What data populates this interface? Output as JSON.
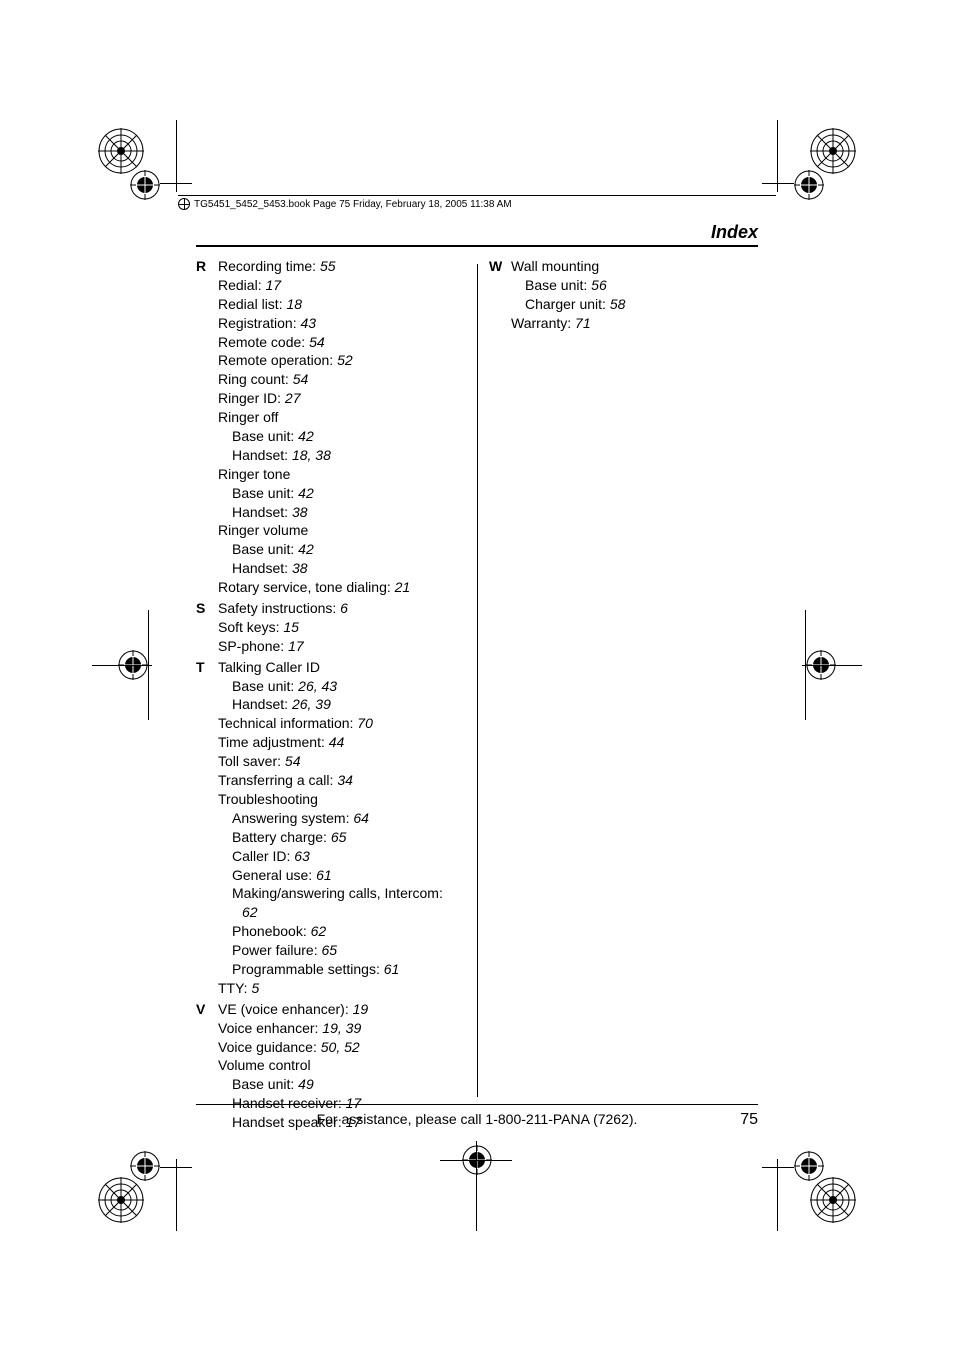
{
  "header_text": "TG5451_5452_5453.book  Page 75  Friday, February 18, 2005  11:38 AM",
  "title": "Index",
  "footer_text": "For assistance, please call 1-800-211-PANA (7262).",
  "page_number": "75",
  "left": {
    "R": {
      "letter": "R",
      "items": [
        {
          "t": "Recording time: ",
          "p": "55"
        },
        {
          "t": "Redial: ",
          "p": "17"
        },
        {
          "t": "Redial list: ",
          "p": "18"
        },
        {
          "t": "Registration: ",
          "p": "43"
        },
        {
          "t": "Remote code: ",
          "p": "54"
        },
        {
          "t": "Remote operation: ",
          "p": "52"
        },
        {
          "t": "Ring count: ",
          "p": "54"
        },
        {
          "t": "Ringer ID: ",
          "p": "27"
        },
        {
          "t": "Ringer off",
          "p": ""
        },
        {
          "t": "Base unit: ",
          "p": "42",
          "sub": true
        },
        {
          "t": "Handset: ",
          "p": "18, 38",
          "sub": true
        },
        {
          "t": "Ringer tone",
          "p": ""
        },
        {
          "t": "Base unit: ",
          "p": "42",
          "sub": true
        },
        {
          "t": "Handset: ",
          "p": "38",
          "sub": true
        },
        {
          "t": "Ringer volume",
          "p": ""
        },
        {
          "t": "Base unit: ",
          "p": "42",
          "sub": true
        },
        {
          "t": "Handset: ",
          "p": "38",
          "sub": true
        },
        {
          "t": "Rotary service, tone dialing: ",
          "p": "21"
        }
      ]
    },
    "S": {
      "letter": "S",
      "items": [
        {
          "t": "Safety instructions: ",
          "p": "6"
        },
        {
          "t": "Soft keys: ",
          "p": "15"
        },
        {
          "t": "SP-phone: ",
          "p": "17"
        }
      ]
    },
    "T": {
      "letter": "T",
      "items": [
        {
          "t": "Talking Caller ID",
          "p": ""
        },
        {
          "t": "Base unit: ",
          "p": "26, 43",
          "sub": true
        },
        {
          "t": "Handset: ",
          "p": "26, 39",
          "sub": true
        },
        {
          "t": "Technical information: ",
          "p": "70"
        },
        {
          "t": "Time adjustment: ",
          "p": "44"
        },
        {
          "t": "Toll saver: ",
          "p": "54"
        },
        {
          "t": "Transferring a call: ",
          "p": "34"
        },
        {
          "t": "Troubleshooting",
          "p": ""
        },
        {
          "t": "Answering system: ",
          "p": "64",
          "sub": true
        },
        {
          "t": "Battery charge: ",
          "p": "65",
          "sub": true
        },
        {
          "t": "Caller ID: ",
          "p": "63",
          "sub": true
        },
        {
          "t": "General use: ",
          "p": "61",
          "sub": true
        },
        {
          "t": "Making/answering calls, Intercom: ",
          "p": "",
          "sub": true
        },
        {
          "t": "62",
          "p": "",
          "sub2": true,
          "pgonly": true
        },
        {
          "t": "Phonebook: ",
          "p": "62",
          "sub": true
        },
        {
          "t": "Power failure: ",
          "p": "65",
          "sub": true
        },
        {
          "t": "Programmable settings: ",
          "p": "61",
          "sub": true
        },
        {
          "t": "TTY: ",
          "p": "5"
        }
      ]
    },
    "V": {
      "letter": "V",
      "items": [
        {
          "t": "VE (voice enhancer): ",
          "p": "19"
        },
        {
          "t": "Voice enhancer: ",
          "p": "19, 39"
        },
        {
          "t": "Voice guidance: ",
          "p": "50, 52"
        },
        {
          "t": "Volume control",
          "p": ""
        },
        {
          "t": "Base unit: ",
          "p": "49",
          "sub": true
        },
        {
          "t": "Handset receiver: ",
          "p": "17",
          "sub": true
        },
        {
          "t": "Handset speaker: ",
          "p": "17",
          "sub": true
        }
      ]
    }
  },
  "right": {
    "W": {
      "letter": "W",
      "items": [
        {
          "t": "Wall mounting",
          "p": ""
        },
        {
          "t": "Base unit: ",
          "p": "56",
          "sub": true
        },
        {
          "t": "Charger unit: ",
          "p": "58",
          "sub": true
        },
        {
          "t": "Warranty: ",
          "p": "71"
        }
      ]
    }
  }
}
